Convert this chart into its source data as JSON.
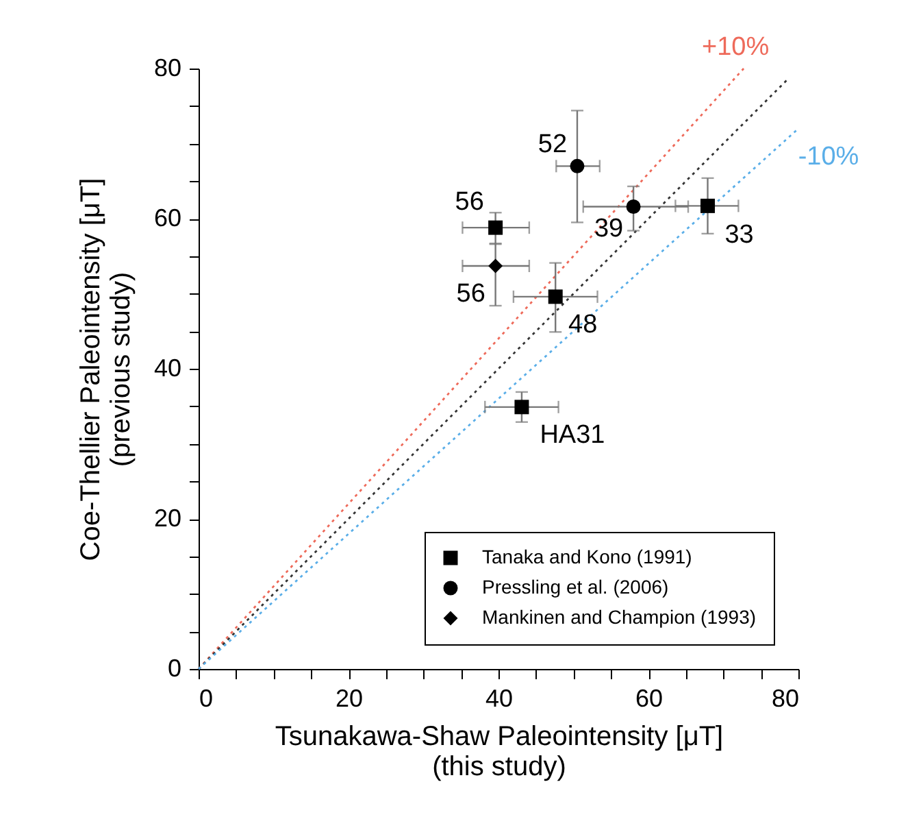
{
  "chart_data": {
    "type": "scatter",
    "xlabel": "Tsunakawa-Shaw Paleointensity [μT]\n(this study)",
    "ylabel": "Coe-Thellier Paleointensity [μT]\n(previous study)",
    "xlim": [
      0,
      80
    ],
    "ylim": [
      0,
      80
    ],
    "xticks": [
      0,
      {
        "value": 5,
        "label": null
      },
      {
        "value": 10,
        "label": null
      },
      {
        "value": 15,
        "label": null
      },
      20,
      {
        "value": 25,
        "label": null
      },
      {
        "value": 30,
        "label": null
      },
      {
        "value": 35,
        "label": null
      },
      40,
      {
        "value": 45,
        "label": null
      },
      {
        "value": 50,
        "label": null
      },
      {
        "value": 55,
        "label": null
      },
      60,
      {
        "value": 65,
        "label": null
      },
      {
        "value": 70,
        "label": null
      },
      {
        "value": 75,
        "label": null
      },
      80
    ],
    "yticks": [
      0,
      {
        "value": 5,
        "label": null
      },
      {
        "value": 10,
        "label": null
      },
      {
        "value": 15,
        "label": null
      },
      20,
      {
        "value": 25,
        "label": null
      },
      {
        "value": 30,
        "label": null
      },
      {
        "value": 35,
        "label": null
      },
      40,
      {
        "value": 45,
        "label": null
      },
      {
        "value": 50,
        "label": null
      },
      {
        "value": 55,
        "label": null
      },
      60,
      {
        "value": 65,
        "label": null
      },
      {
        "value": 70,
        "label": null
      },
      {
        "value": 75,
        "label": null
      },
      80
    ],
    "grid": false,
    "legend": "bottom right",
    "series": [
      {
        "type": "line",
        "color": "#ee6a5a",
        "line_style": "dotted",
        "x": [
          0,
          72.7
        ],
        "values": [
          0,
          80
        ]
      },
      {
        "type": "line",
        "color": "#333333",
        "line_style": "dotted",
        "x": [
          0,
          78.5
        ],
        "values": [
          0,
          78.5
        ]
      },
      {
        "type": "line",
        "color": "#5aaee8",
        "line_style": "dotted",
        "x": [
          0,
          80
        ],
        "values": [
          0,
          72
        ]
      },
      {
        "name": "Tanaka and Kono (1991)",
        "color": "#000000",
        "marker": "square",
        "x": [
          39.6,
          47.6,
          67.9,
          43.1
        ],
        "values": [
          58.8,
          49.6,
          61.7,
          34.9
        ],
        "errors": [
          [
            56.6,
            60.8
          ],
          [
            44.9,
            54.1
          ],
          [
            58.0,
            65.4
          ],
          [
            32.9,
            36.9
          ]
        ],
        "xerrors": [
          [
            35.2,
            44.1
          ],
          [
            42.0,
            53.2
          ],
          [
            63.6,
            72.0
          ],
          [
            38.2,
            48.0
          ]
        ]
      },
      {
        "name": "Pressling et al. (2006)",
        "color": "#000000",
        "marker": "circle",
        "x": [
          50.5,
          58.0
        ],
        "values": [
          67.0,
          61.6
        ],
        "errors": [
          [
            59.5,
            74.4
          ],
          [
            58.4,
            64.3
          ]
        ],
        "xerrors": [
          [
            47.7,
            53.5
          ],
          [
            51.3,
            65.3
          ]
        ]
      },
      {
        "name": "Mankinen and Champion (1993)",
        "color": "#000000",
        "marker": "diamond",
        "x": [
          39.6
        ],
        "values": [
          53.7
        ],
        "errors": [
          [
            48.4,
            56.7
          ]
        ],
        "xerrors": [
          [
            35.2,
            44.1
          ]
        ]
      }
    ],
    "annotations": [
      {
        "text": "56",
        "x": 39.6,
        "y": 58.8
      },
      {
        "text": "52",
        "x": 50.5,
        "y": 67.0
      },
      {
        "text": "56",
        "x": 39.6,
        "y": 53.7
      },
      {
        "text": "39",
        "x": 58.0,
        "y": 61.6
      },
      {
        "text": "33",
        "x": 67.9,
        "y": 61.7
      },
      {
        "text": "48",
        "x": 47.6,
        "y": 49.6
      },
      {
        "text": "HA31",
        "x": 43.1,
        "y": 34.9
      },
      {
        "text": "+10%",
        "x": 72.7,
        "y": 80
      },
      {
        "text": "-10%",
        "x": 80,
        "y": 72
      }
    ]
  }
}
